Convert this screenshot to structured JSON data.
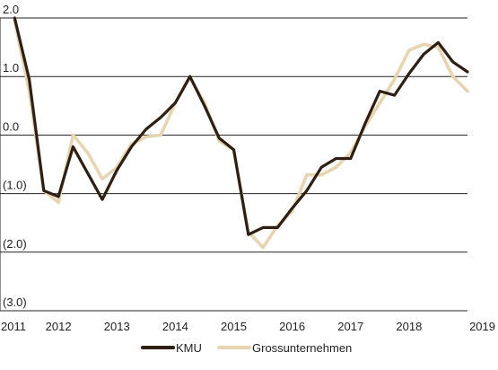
{
  "chart_data": {
    "type": "line",
    "title": "",
    "xlabel": "",
    "ylabel": "",
    "xlim": [
      2011.0,
      2019.0
    ],
    "ylim": [
      -3.0,
      2.0
    ],
    "x_ticks": [
      {
        "value": 2011,
        "label": "2011"
      },
      {
        "value": 2012,
        "label": "2012"
      },
      {
        "value": 2013,
        "label": "2013"
      },
      {
        "value": 2014,
        "label": "2014"
      },
      {
        "value": 2015,
        "label": "2015"
      },
      {
        "value": 2016,
        "label": "2016"
      },
      {
        "value": 2017,
        "label": "2017"
      },
      {
        "value": 2018,
        "label": "2018"
      },
      {
        "value": 2019,
        "label": "2019"
      }
    ],
    "y_ticks": [
      {
        "value": 2.0,
        "label": "2.0"
      },
      {
        "value": 1.0,
        "label": "1.0"
      },
      {
        "value": 0.0,
        "label": "0.0"
      },
      {
        "value": -1.0,
        "label": "(1.0)"
      },
      {
        "value": -2.0,
        "label": "(2.0)"
      },
      {
        "value": -3.0,
        "label": "(3.0)"
      }
    ],
    "grid": "horizontal",
    "legend_position": "bottom-center",
    "series": [
      {
        "name": "KMU",
        "color": "#2e1f12",
        "points": [
          [
            2011.25,
            2.0
          ],
          [
            2011.5,
            0.95
          ],
          [
            2011.75,
            -0.95
          ],
          [
            2012.0,
            -1.05
          ],
          [
            2012.25,
            -0.2
          ],
          [
            2012.5,
            -0.65
          ],
          [
            2012.75,
            -1.1
          ],
          [
            2013.0,
            -0.6
          ],
          [
            2013.25,
            -0.2
          ],
          [
            2013.5,
            0.1
          ],
          [
            2013.75,
            0.3
          ],
          [
            2014.0,
            0.55
          ],
          [
            2014.25,
            1.0
          ],
          [
            2014.5,
            0.5
          ],
          [
            2014.75,
            -0.05
          ],
          [
            2015.0,
            -0.25
          ],
          [
            2015.25,
            -1.7
          ],
          [
            2015.5,
            -1.58
          ],
          [
            2015.75,
            -1.58
          ],
          [
            2016.0,
            -1.25
          ],
          [
            2016.25,
            -0.95
          ],
          [
            2016.5,
            -0.55
          ],
          [
            2016.75,
            -0.4
          ],
          [
            2017.0,
            -0.4
          ],
          [
            2017.25,
            0.2
          ],
          [
            2017.5,
            0.75
          ],
          [
            2017.75,
            0.68
          ],
          [
            2018.0,
            1.05
          ],
          [
            2018.25,
            1.38
          ],
          [
            2018.5,
            1.58
          ],
          [
            2018.75,
            1.25
          ],
          [
            2019.0,
            1.08
          ]
        ]
      },
      {
        "name": "Grossunternehmen",
        "color": "#e6d5b0",
        "points": [
          [
            2011.25,
            1.95
          ],
          [
            2011.5,
            0.75
          ],
          [
            2011.75,
            -0.95
          ],
          [
            2012.0,
            -1.15
          ],
          [
            2012.25,
            0.0
          ],
          [
            2012.5,
            -0.3
          ],
          [
            2012.75,
            -0.75
          ],
          [
            2013.0,
            -0.55
          ],
          [
            2013.25,
            -0.15
          ],
          [
            2013.5,
            -0.03
          ],
          [
            2013.75,
            0.0
          ],
          [
            2014.0,
            0.55
          ],
          [
            2014.25,
            0.98
          ],
          [
            2014.5,
            0.55
          ],
          [
            2014.75,
            -0.1
          ],
          [
            2015.0,
            -0.25
          ],
          [
            2015.25,
            -1.65
          ],
          [
            2015.5,
            -1.92
          ],
          [
            2015.75,
            -1.55
          ],
          [
            2016.0,
            -1.3
          ],
          [
            2016.25,
            -0.68
          ],
          [
            2016.5,
            -0.68
          ],
          [
            2016.75,
            -0.55
          ],
          [
            2017.0,
            -0.3
          ],
          [
            2017.25,
            0.15
          ],
          [
            2017.5,
            0.55
          ],
          [
            2017.75,
            0.95
          ],
          [
            2018.0,
            1.45
          ],
          [
            2018.25,
            1.55
          ],
          [
            2018.5,
            1.5
          ],
          [
            2018.75,
            1.0
          ],
          [
            2019.0,
            0.75
          ]
        ]
      }
    ]
  }
}
